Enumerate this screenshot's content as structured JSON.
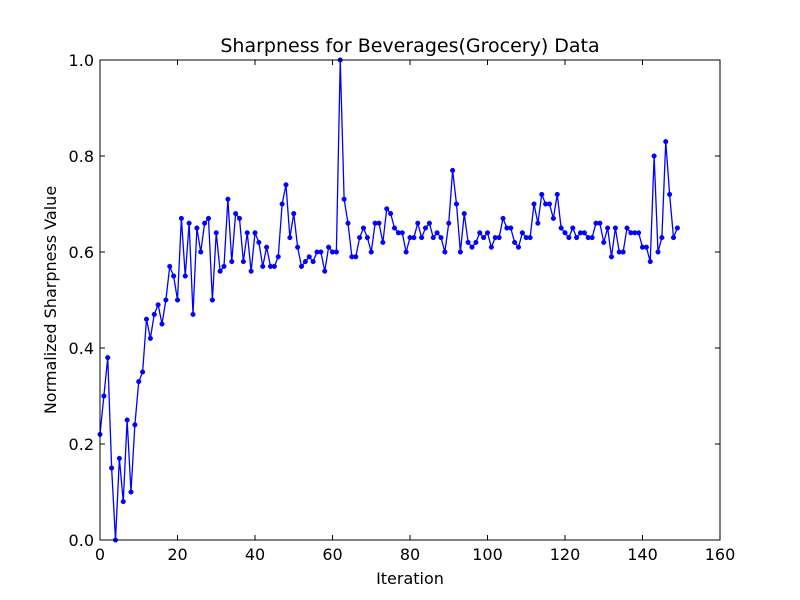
{
  "chart_data": {
    "type": "line",
    "title": "Sharpness for Beverages(Grocery) Data",
    "xlabel": "Iteration",
    "ylabel": "Normalized Sharpness Value",
    "xlim": [
      0,
      160
    ],
    "ylim": [
      0,
      1
    ],
    "xticks": [
      "0",
      "20",
      "40",
      "60",
      "80",
      "100",
      "120",
      "140",
      "160"
    ],
    "yticks": [
      "0.0",
      "0.2",
      "0.4",
      "0.6",
      "0.8",
      "1.0"
    ],
    "grid": false,
    "line_color": "#0000ff",
    "x": [
      0,
      1,
      2,
      3,
      4,
      5,
      6,
      7,
      8,
      9,
      10,
      11,
      12,
      13,
      14,
      15,
      16,
      17,
      18,
      19,
      20,
      21,
      22,
      23,
      24,
      25,
      26,
      27,
      28,
      29,
      30,
      31,
      32,
      33,
      34,
      35,
      36,
      37,
      38,
      39,
      40,
      41,
      42,
      43,
      44,
      45,
      46,
      47,
      48,
      49,
      50,
      51,
      52,
      53,
      54,
      55,
      56,
      57,
      58,
      59,
      60,
      61,
      62,
      63,
      64,
      65,
      66,
      67,
      68,
      69,
      70,
      71,
      72,
      73,
      74,
      75,
      76,
      77,
      78,
      79,
      80,
      81,
      82,
      83,
      84,
      85,
      86,
      87,
      88,
      89,
      90,
      91,
      92,
      93,
      94,
      95,
      96,
      97,
      98,
      99,
      100,
      101,
      102,
      103,
      104,
      105,
      106,
      107,
      108,
      109,
      110,
      111,
      112,
      113,
      114,
      115,
      116,
      117,
      118,
      119,
      120,
      121,
      122,
      123,
      124,
      125,
      126,
      127,
      128,
      129,
      130,
      131,
      132,
      133,
      134,
      135,
      136,
      137,
      138,
      139,
      140,
      141,
      142,
      143,
      144,
      145,
      146,
      147,
      148,
      149
    ],
    "y": [
      0.22,
      0.3,
      0.38,
      0.15,
      0.0,
      0.17,
      0.08,
      0.25,
      0.1,
      0.24,
      0.33,
      0.35,
      0.46,
      0.42,
      0.47,
      0.49,
      0.45,
      0.5,
      0.57,
      0.55,
      0.5,
      0.67,
      0.55,
      0.66,
      0.47,
      0.65,
      0.6,
      0.66,
      0.67,
      0.5,
      0.64,
      0.56,
      0.57,
      0.71,
      0.58,
      0.68,
      0.67,
      0.58,
      0.64,
      0.56,
      0.64,
      0.62,
      0.57,
      0.61,
      0.57,
      0.57,
      0.59,
      0.7,
      0.74,
      0.63,
      0.68,
      0.61,
      0.57,
      0.58,
      0.59,
      0.58,
      0.6,
      0.6,
      0.56,
      0.61,
      0.6,
      0.6,
      1.0,
      0.71,
      0.66,
      0.59,
      0.59,
      0.63,
      0.65,
      0.63,
      0.6,
      0.66,
      0.66,
      0.62,
      0.69,
      0.68,
      0.65,
      0.64,
      0.64,
      0.6,
      0.63,
      0.63,
      0.66,
      0.63,
      0.65,
      0.66,
      0.63,
      0.64,
      0.63,
      0.6,
      0.66,
      0.77,
      0.7,
      0.6,
      0.68,
      0.62,
      0.61,
      0.62,
      0.64,
      0.63,
      0.64,
      0.61,
      0.63,
      0.63,
      0.67,
      0.65,
      0.65,
      0.62,
      0.61,
      0.64,
      0.63,
      0.63,
      0.7,
      0.66,
      0.72,
      0.7,
      0.7,
      0.67,
      0.72,
      0.65,
      0.64,
      0.63,
      0.65,
      0.63,
      0.64,
      0.64,
      0.63,
      0.63,
      0.66,
      0.66,
      0.62,
      0.65,
      0.59,
      0.65,
      0.6,
      0.6,
      0.65,
      0.64,
      0.64,
      0.64,
      0.61,
      0.61,
      0.58,
      0.8,
      0.6,
      0.63,
      0.83,
      0.72,
      0.63,
      0.65
    ]
  }
}
